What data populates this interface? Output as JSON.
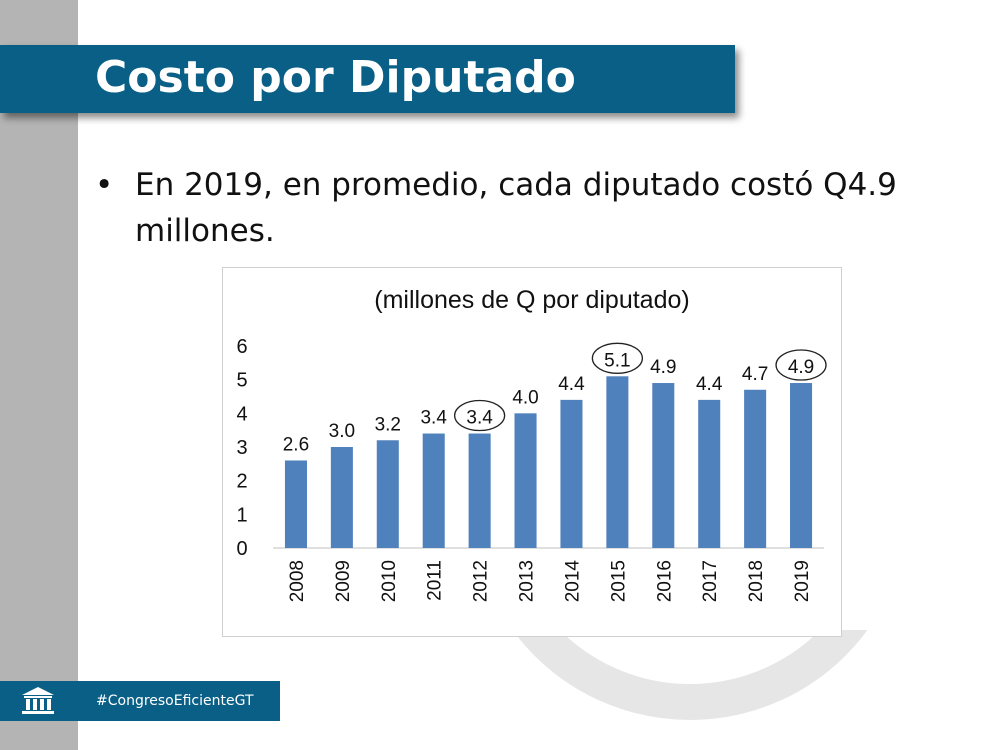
{
  "slide": {
    "title": "Costo por Diputado",
    "bullet_marker": "•",
    "bullet": "En 2019, en promedio, cada diputado costó Q4.9 millones.",
    "footer_hashtag": "#CongresoEficienteGT",
    "footer_icon": "government-building-icon"
  },
  "colors": {
    "banner": "#0a5f87",
    "bar": "#4f81bd",
    "sidebar": "#b4b4b4"
  },
  "chart_data": {
    "type": "bar",
    "title": "(millones de Q por diputado)",
    "categories": [
      "2008",
      "2009",
      "2010",
      "2011",
      "2012",
      "2013",
      "2014",
      "2015",
      "2016",
      "2017",
      "2018",
      "2019"
    ],
    "values": [
      2.6,
      3.0,
      3.2,
      3.4,
      3.4,
      4.0,
      4.4,
      5.1,
      4.9,
      4.4,
      4.7,
      4.9
    ],
    "labels": [
      "2.6",
      "3.0",
      "3.2",
      "3.4",
      "3.4",
      "4.0",
      "4.4",
      "5.1",
      "4.9",
      "4.4",
      "4.7",
      "4.9"
    ],
    "highlighted": [
      "2012",
      "2015",
      "2019"
    ],
    "yticks": [
      "0",
      "1",
      "2",
      "3",
      "4",
      "5",
      "6"
    ],
    "ylim": [
      0,
      6
    ],
    "xlabel": "",
    "ylabel": "",
    "grid": false,
    "legend": "none"
  }
}
